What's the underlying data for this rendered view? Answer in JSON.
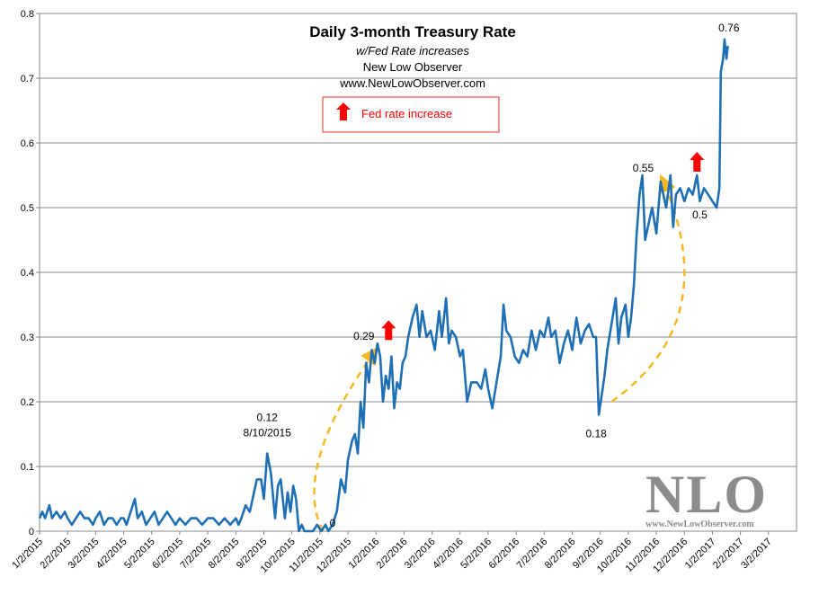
{
  "chart_data": {
    "type": "line",
    "title": "Daily 3-month Treasury Rate",
    "subtitle": "w/Fed Rate increases",
    "source": "New Low Observer",
    "website": "www.NewLowObserver.com",
    "legend": {
      "label": "Fed rate increase",
      "color": "#ff0000",
      "placement": "top-center"
    },
    "ylim": [
      0,
      0.8
    ],
    "yticks": [
      "0",
      "0.1",
      "0.2",
      "0.3",
      "0.4",
      "0.5",
      "0.6",
      "0.7",
      "0.8"
    ],
    "xtick_labels": [
      "1/2/2015",
      "2/2/2015",
      "3/2/2015",
      "4/2/2015",
      "5/2/2015",
      "6/2/2015",
      "7/2/2015",
      "8/2/2015",
      "9/2/2015",
      "10/2/2015",
      "11/2/2015",
      "12/2/2015",
      "1/2/2016",
      "2/2/2016",
      "3/2/2016",
      "4/2/2016",
      "5/2/2016",
      "6/2/2016",
      "7/2/2016",
      "8/2/2016",
      "9/2/2016",
      "10/2/2016",
      "11/2/2016",
      "12/2/2016",
      "1/2/2017",
      "2/2/2017",
      "3/2/2017"
    ],
    "grid": true,
    "series": [
      {
        "name": "Daily 3-month Treasury Rate",
        "color": "#1f6fb5",
        "points": [
          [
            0.0,
            0.02
          ],
          [
            0.1,
            0.03
          ],
          [
            0.2,
            0.02
          ],
          [
            0.35,
            0.04
          ],
          [
            0.45,
            0.02
          ],
          [
            0.6,
            0.03
          ],
          [
            0.75,
            0.02
          ],
          [
            0.9,
            0.03
          ],
          [
            1.0,
            0.02
          ],
          [
            1.15,
            0.01
          ],
          [
            1.3,
            0.02
          ],
          [
            1.45,
            0.03
          ],
          [
            1.6,
            0.02
          ],
          [
            1.75,
            0.02
          ],
          [
            1.9,
            0.01
          ],
          [
            2.0,
            0.02
          ],
          [
            2.15,
            0.03
          ],
          [
            2.3,
            0.01
          ],
          [
            2.45,
            0.02
          ],
          [
            2.6,
            0.02
          ],
          [
            2.75,
            0.01
          ],
          [
            2.9,
            0.02
          ],
          [
            3.0,
            0.02
          ],
          [
            3.1,
            0.01
          ],
          [
            3.25,
            0.03
          ],
          [
            3.4,
            0.05
          ],
          [
            3.5,
            0.02
          ],
          [
            3.65,
            0.03
          ],
          [
            3.8,
            0.01
          ],
          [
            3.95,
            0.02
          ],
          [
            4.1,
            0.03
          ],
          [
            4.25,
            0.01
          ],
          [
            4.4,
            0.02
          ],
          [
            4.55,
            0.03
          ],
          [
            4.7,
            0.02
          ],
          [
            4.85,
            0.01
          ],
          [
            5.0,
            0.02
          ],
          [
            5.2,
            0.01
          ],
          [
            5.4,
            0.02
          ],
          [
            5.6,
            0.02
          ],
          [
            5.8,
            0.01
          ],
          [
            6.0,
            0.02
          ],
          [
            6.2,
            0.02
          ],
          [
            6.4,
            0.01
          ],
          [
            6.6,
            0.02
          ],
          [
            6.8,
            0.01
          ],
          [
            7.0,
            0.02
          ],
          [
            7.1,
            0.01
          ],
          [
            7.2,
            0.02
          ],
          [
            7.35,
            0.04
          ],
          [
            7.5,
            0.03
          ],
          [
            7.6,
            0.05
          ],
          [
            7.75,
            0.08
          ],
          [
            7.9,
            0.08
          ],
          [
            8.0,
            0.05
          ],
          [
            8.12,
            0.12
          ],
          [
            8.25,
            0.09
          ],
          [
            8.4,
            0.02
          ],
          [
            8.5,
            0.07
          ],
          [
            8.6,
            0.08
          ],
          [
            8.75,
            0.02
          ],
          [
            8.85,
            0.06
          ],
          [
            8.95,
            0.03
          ],
          [
            9.05,
            0.07
          ],
          [
            9.15,
            0.05
          ],
          [
            9.25,
            0.0
          ],
          [
            9.35,
            0.01
          ],
          [
            9.45,
            0.0
          ],
          [
            9.6,
            0.0
          ],
          [
            9.75,
            0.0
          ],
          [
            9.9,
            0.01
          ],
          [
            10.05,
            0.0
          ],
          [
            10.2,
            0.01
          ],
          [
            10.3,
            0.0
          ],
          [
            10.45,
            0.01
          ],
          [
            10.6,
            0.03
          ],
          [
            10.75,
            0.08
          ],
          [
            10.9,
            0.06
          ],
          [
            11.0,
            0.11
          ],
          [
            11.15,
            0.14
          ],
          [
            11.25,
            0.15
          ],
          [
            11.35,
            0.12
          ],
          [
            11.45,
            0.2
          ],
          [
            11.55,
            0.16
          ],
          [
            11.65,
            0.26
          ],
          [
            11.75,
            0.23
          ],
          [
            11.85,
            0.28
          ],
          [
            11.95,
            0.26
          ],
          [
            12.05,
            0.29
          ],
          [
            12.15,
            0.27
          ],
          [
            12.25,
            0.2
          ],
          [
            12.35,
            0.24
          ],
          [
            12.45,
            0.22
          ],
          [
            12.55,
            0.27
          ],
          [
            12.65,
            0.19
          ],
          [
            12.75,
            0.23
          ],
          [
            12.85,
            0.22
          ],
          [
            12.95,
            0.26
          ],
          [
            13.05,
            0.27
          ],
          [
            13.15,
            0.3
          ],
          [
            13.3,
            0.33
          ],
          [
            13.45,
            0.35
          ],
          [
            13.55,
            0.3
          ],
          [
            13.65,
            0.34
          ],
          [
            13.8,
            0.3
          ],
          [
            13.95,
            0.31
          ],
          [
            14.1,
            0.28
          ],
          [
            14.25,
            0.34
          ],
          [
            14.35,
            0.3
          ],
          [
            14.5,
            0.36
          ],
          [
            14.6,
            0.29
          ],
          [
            14.7,
            0.31
          ],
          [
            14.85,
            0.3
          ],
          [
            15.0,
            0.27
          ],
          [
            15.1,
            0.28
          ],
          [
            15.25,
            0.2
          ],
          [
            15.4,
            0.23
          ],
          [
            15.6,
            0.23
          ],
          [
            15.75,
            0.22
          ],
          [
            15.9,
            0.25
          ],
          [
            16.0,
            0.22
          ],
          [
            16.15,
            0.19
          ],
          [
            16.3,
            0.23
          ],
          [
            16.45,
            0.27
          ],
          [
            16.55,
            0.35
          ],
          [
            16.65,
            0.31
          ],
          [
            16.8,
            0.3
          ],
          [
            16.95,
            0.27
          ],
          [
            17.1,
            0.26
          ],
          [
            17.25,
            0.28
          ],
          [
            17.4,
            0.27
          ],
          [
            17.55,
            0.31
          ],
          [
            17.7,
            0.28
          ],
          [
            17.85,
            0.31
          ],
          [
            18.0,
            0.3
          ],
          [
            18.15,
            0.33
          ],
          [
            18.25,
            0.3
          ],
          [
            18.4,
            0.31
          ],
          [
            18.55,
            0.26
          ],
          [
            18.7,
            0.29
          ],
          [
            18.85,
            0.31
          ],
          [
            19.0,
            0.28
          ],
          [
            19.15,
            0.33
          ],
          [
            19.3,
            0.29
          ],
          [
            19.45,
            0.31
          ],
          [
            19.6,
            0.32
          ],
          [
            19.75,
            0.3
          ],
          [
            19.85,
            0.3
          ],
          [
            19.95,
            0.18
          ],
          [
            20.05,
            0.21
          ],
          [
            20.15,
            0.24
          ],
          [
            20.25,
            0.28
          ],
          [
            20.4,
            0.32
          ],
          [
            20.55,
            0.36
          ],
          [
            20.65,
            0.29
          ],
          [
            20.75,
            0.33
          ],
          [
            20.9,
            0.35
          ],
          [
            21.0,
            0.3
          ],
          [
            21.1,
            0.33
          ],
          [
            21.2,
            0.38
          ],
          [
            21.3,
            0.46
          ],
          [
            21.4,
            0.52
          ],
          [
            21.5,
            0.55
          ],
          [
            21.6,
            0.45
          ],
          [
            21.7,
            0.47
          ],
          [
            21.85,
            0.5
          ],
          [
            22.0,
            0.46
          ],
          [
            22.15,
            0.54
          ],
          [
            22.25,
            0.52
          ],
          [
            22.35,
            0.5
          ],
          [
            22.5,
            0.55
          ],
          [
            22.6,
            0.47
          ],
          [
            22.7,
            0.52
          ],
          [
            22.85,
            0.53
          ],
          [
            23.0,
            0.51
          ],
          [
            23.15,
            0.53
          ],
          [
            23.3,
            0.52
          ],
          [
            23.45,
            0.55
          ],
          [
            23.55,
            0.51
          ],
          [
            23.7,
            0.53
          ],
          [
            23.85,
            0.52
          ],
          [
            24.0,
            0.51
          ],
          [
            24.15,
            0.5
          ],
          [
            24.25,
            0.53
          ],
          [
            24.3,
            0.71
          ],
          [
            24.38,
            0.73
          ],
          [
            24.43,
            0.76
          ],
          [
            24.5,
            0.73
          ],
          [
            24.55,
            0.75
          ]
        ]
      }
    ],
    "annotations": [
      {
        "text": "0.12",
        "x": 8.12,
        "y": 0.12
      },
      {
        "text": "8/10/2015",
        "x": 8.12,
        "y": 0.12
      },
      {
        "text": "0",
        "x": 10.1,
        "y": 0.0
      },
      {
        "text": "0.29",
        "x": 12.05,
        "y": 0.29
      },
      {
        "text": "0.18",
        "x": 19.95,
        "y": 0.18
      },
      {
        "text": "0.55",
        "x": 21.5,
        "y": 0.55
      },
      {
        "text": "0.5",
        "x": 23.55,
        "y": 0.5
      },
      {
        "text": "0.76",
        "x": 24.43,
        "y": 0.76
      }
    ],
    "fed_rate_increases": [
      {
        "date": "12/16/2015",
        "x": 12.45,
        "y": 0.29
      },
      {
        "date": "12/14/2016",
        "x": 23.45,
        "y": 0.55
      }
    ],
    "trend_arcs": [
      {
        "from": {
          "x": 10.1,
          "y": 0.0
        },
        "to": {
          "x": 12.0,
          "y": 0.28
        },
        "color": "#f5b820"
      },
      {
        "from": {
          "x": 20.4,
          "y": 0.2
        },
        "to": {
          "x": 22.2,
          "y": 0.545
        },
        "color": "#f5b820"
      }
    ],
    "watermark": {
      "logo": "NLO",
      "url": "www.NewLowObserver.com"
    }
  }
}
